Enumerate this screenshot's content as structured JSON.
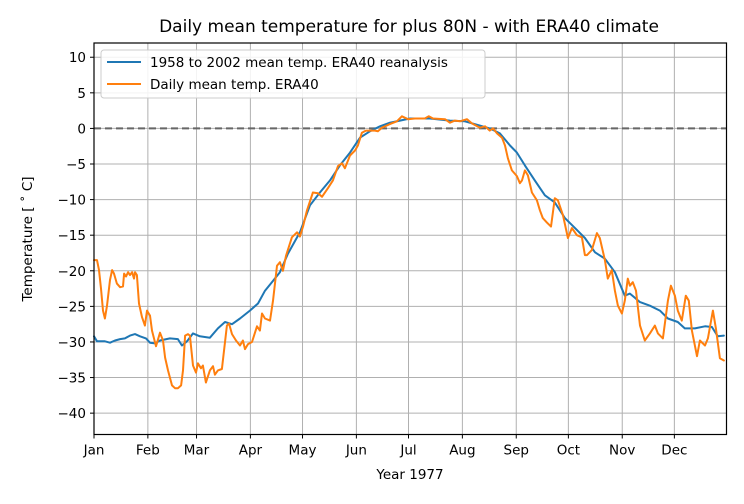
{
  "chart_data": {
    "type": "line",
    "title": "Daily mean temperature for plus 80N - with ERA40 climate",
    "xlabel": "Year 1977",
    "ylabel": "Temperature [$^\\circ$C]",
    "ylabel_display": "Temperature [ ˚ C]",
    "xlim": [
      0,
      364
    ],
    "ylim": [
      -43,
      12
    ],
    "grid": true,
    "legend_position": "top-left",
    "x_units": "day of year",
    "xticks": [
      {
        "value": 0,
        "label": "Jan"
      },
      {
        "value": 31,
        "label": "Feb"
      },
      {
        "value": 59,
        "label": "Mar"
      },
      {
        "value": 90,
        "label": "Apr"
      },
      {
        "value": 120,
        "label": "May"
      },
      {
        "value": 151,
        "label": "Jun"
      },
      {
        "value": 181,
        "label": "Jul"
      },
      {
        "value": 212,
        "label": "Aug"
      },
      {
        "value": 243,
        "label": "Sep"
      },
      {
        "value": 273,
        "label": "Oct"
      },
      {
        "value": 304,
        "label": "Nov"
      },
      {
        "value": 334,
        "label": "Dec"
      }
    ],
    "yticks": [
      {
        "value": 10,
        "label": "10"
      },
      {
        "value": 5,
        "label": "5"
      },
      {
        "value": 0,
        "label": "0"
      },
      {
        "value": -5,
        "label": "−5"
      },
      {
        "value": -10,
        "label": "−10"
      },
      {
        "value": -15,
        "label": "−15"
      },
      {
        "value": -20,
        "label": "−20"
      },
      {
        "value": -25,
        "label": "−25"
      },
      {
        "value": -30,
        "label": "−30"
      },
      {
        "value": -35,
        "label": "−35"
      },
      {
        "value": -40,
        "label": "−40"
      }
    ],
    "reference_line": {
      "y": 0,
      "style": "dashed",
      "color": "#666666"
    },
    "series": [
      {
        "name": "1958 to 2002 mean temp. ERA40 reanalysis",
        "color": "#1f77b4",
        "x": [
          0,
          1.7,
          6.3,
          9.2,
          12.1,
          15.0,
          17.8,
          20.7,
          23.6,
          26.5,
          29.9,
          32.2,
          35.1,
          38.0,
          43.7,
          48.3,
          50.6,
          53.5,
          57.0,
          60.9,
          66.7,
          71.3,
          75.4,
          79.4,
          84.0,
          89.7,
          94.4,
          98.4,
          102.4,
          107.0,
          111.6,
          118.5,
          124.3,
          130.0,
          135.8,
          141.5,
          147.3,
          153.1,
          158.8,
          164.6,
          170.3,
          176.1,
          181.8,
          193.3,
          204.8,
          213.4,
          222.1,
          227.8,
          233.6,
          239.4,
          243.4,
          248.0,
          253.7,
          259.5,
          265.2,
          271.0,
          276.8,
          282.5,
          288.3,
          294.0,
          299.8,
          305.5,
          308.4,
          314.2,
          319.9,
          325.7,
          330.3,
          336.0,
          340.0,
          345.8,
          351.6,
          355.6,
          359.0,
          362.5
        ],
        "y": [
          -29.2,
          -29.9,
          -29.9,
          -30.1,
          -29.8,
          -29.6,
          -29.5,
          -29.1,
          -28.9,
          -29.2,
          -29.5,
          -30.1,
          -30.2,
          -29.8,
          -29.5,
          -29.6,
          -30.5,
          -29.9,
          -28.8,
          -29.2,
          -29.4,
          -28.1,
          -27.2,
          -27.5,
          -26.7,
          -25.6,
          -24.6,
          -22.8,
          -21.6,
          -20.2,
          -17.6,
          -14.6,
          -10.8,
          -9.0,
          -7.3,
          -5.2,
          -3.4,
          -1.3,
          -0.4,
          0.3,
          0.8,
          1.1,
          1.4,
          1.4,
          1.1,
          1.0,
          0.4,
          0.0,
          -0.7,
          -2.4,
          -3.4,
          -5.2,
          -7.3,
          -9.4,
          -10.4,
          -12.6,
          -14.0,
          -15.4,
          -17.4,
          -18.3,
          -20.2,
          -23.5,
          -23.2,
          -24.4,
          -24.9,
          -25.6,
          -26.7,
          -27.2,
          -28.1,
          -28.1,
          -27.8,
          -27.9,
          -29.2,
          -29.1
        ]
      },
      {
        "name": "Daily mean temp. ERA40",
        "color": "#ff7f0e",
        "x": [
          0,
          1.7,
          2.9,
          4.0,
          5.2,
          6.3,
          7.5,
          9.2,
          10.4,
          11.5,
          13.2,
          15.0,
          16.7,
          17.3,
          18.4,
          19.6,
          20.7,
          21.9,
          23.0,
          23.6,
          24.7,
          25.9,
          27.6,
          29.3,
          30.5,
          32.2,
          33.4,
          35.7,
          38.0,
          39.7,
          40.9,
          42.6,
          44.9,
          46.6,
          48.3,
          50.1,
          51.2,
          52.4,
          54.1,
          55.2,
          57.0,
          58.7,
          59.8,
          61.6,
          62.7,
          64.4,
          66.7,
          68.5,
          69.6,
          71.3,
          73.6,
          76.5,
          77.7,
          79.4,
          81.7,
          84.0,
          85.7,
          86.9,
          88.6,
          90.9,
          93.8,
          95.5,
          96.7,
          98.4,
          101.3,
          103.0,
          105.3,
          107.0,
          108.7,
          110.5,
          113.9,
          116.8,
          118.5,
          120.3,
          122.6,
          126.0,
          128.9,
          131.2,
          134.6,
          137.5,
          140.4,
          142.7,
          144.4,
          147.3,
          150.2,
          151.9,
          154.2,
          156.5,
          161.7,
          163.4,
          165.7,
          170.3,
          174.3,
          177.2,
          180.7,
          184.7,
          190.4,
          192.7,
          195.1,
          202.0,
          204.8,
          207.7,
          210.6,
          214.6,
          217.5,
          222.1,
          225.0,
          227.8,
          229.6,
          231.9,
          234.8,
          236.5,
          238.2,
          240.5,
          243.4,
          245.1,
          246.3,
          248.0,
          249.7,
          252.0,
          254.9,
          256.6,
          258.3,
          260.6,
          263.0,
          265.2,
          267.0,
          269.9,
          272.7,
          275.0,
          277.9,
          280.8,
          282.5,
          283.7,
          286.5,
          289.4,
          291.1,
          294.0,
          295.7,
          298.0,
          299.8,
          301.5,
          303.8,
          305.5,
          307.2,
          308.4,
          310.1,
          311.9,
          314.2,
          317.0,
          319.9,
          322.8,
          324.5,
          327.4,
          330.3,
          332.0,
          334.3,
          336.0,
          338.3,
          340.6,
          342.3,
          344.1,
          347.0,
          348.7,
          351.6,
          353.3,
          356.2,
          357.9,
          360.2,
          362.5
        ],
        "y": [
          -18.5,
          -18.5,
          -19.9,
          -22.5,
          -25.6,
          -26.7,
          -24.9,
          -21.3,
          -19.9,
          -20.4,
          -21.8,
          -22.3,
          -22.2,
          -20.4,
          -20.8,
          -20.2,
          -20.6,
          -20.2,
          -21.1,
          -20.2,
          -20.6,
          -24.6,
          -26.5,
          -27.7,
          -25.6,
          -26.3,
          -28.4,
          -30.6,
          -28.7,
          -29.8,
          -32.2,
          -34.0,
          -36.1,
          -36.5,
          -36.5,
          -36.1,
          -34.0,
          -29.1,
          -28.9,
          -29.1,
          -33.3,
          -34.3,
          -33.0,
          -33.7,
          -33.3,
          -35.7,
          -34.0,
          -33.4,
          -34.6,
          -34.0,
          -33.8,
          -27.7,
          -27.4,
          -28.9,
          -29.8,
          -30.5,
          -29.8,
          -31.0,
          -30.3,
          -30.0,
          -27.8,
          -28.4,
          -26.0,
          -26.7,
          -27.0,
          -24.2,
          -19.3,
          -18.8,
          -20.0,
          -17.9,
          -15.3,
          -14.6,
          -15.2,
          -13.8,
          -11.5,
          -9.0,
          -9.1,
          -9.6,
          -8.4,
          -7.3,
          -5.3,
          -4.9,
          -5.6,
          -3.8,
          -3.1,
          -2.4,
          -0.6,
          -0.3,
          -0.3,
          -0.4,
          0.1,
          0.6,
          1.0,
          1.7,
          1.3,
          1.4,
          1.4,
          1.7,
          1.4,
          1.3,
          0.8,
          1.1,
          1.0,
          1.3,
          0.7,
          0.1,
          0.3,
          -0.3,
          0.0,
          -0.7,
          -1.3,
          -2.4,
          -4.2,
          -5.9,
          -6.7,
          -7.7,
          -7.3,
          -5.9,
          -6.6,
          -9.0,
          -10.1,
          -11.5,
          -12.6,
          -13.2,
          -13.8,
          -9.8,
          -10.1,
          -12.2,
          -15.4,
          -14.0,
          -15.0,
          -15.3,
          -17.8,
          -17.8,
          -17.1,
          -14.7,
          -15.4,
          -18.5,
          -21.1,
          -19.9,
          -22.8,
          -24.9,
          -26.0,
          -24.2,
          -21.1,
          -22.1,
          -21.6,
          -22.8,
          -27.7,
          -29.8,
          -28.8,
          -27.7,
          -28.8,
          -29.5,
          -24.2,
          -22.1,
          -23.5,
          -25.6,
          -27.0,
          -23.5,
          -24.2,
          -28.4,
          -32.0,
          -29.8,
          -30.5,
          -29.5,
          -25.6,
          -28.1,
          -32.3,
          -32.6
        ]
      }
    ]
  }
}
